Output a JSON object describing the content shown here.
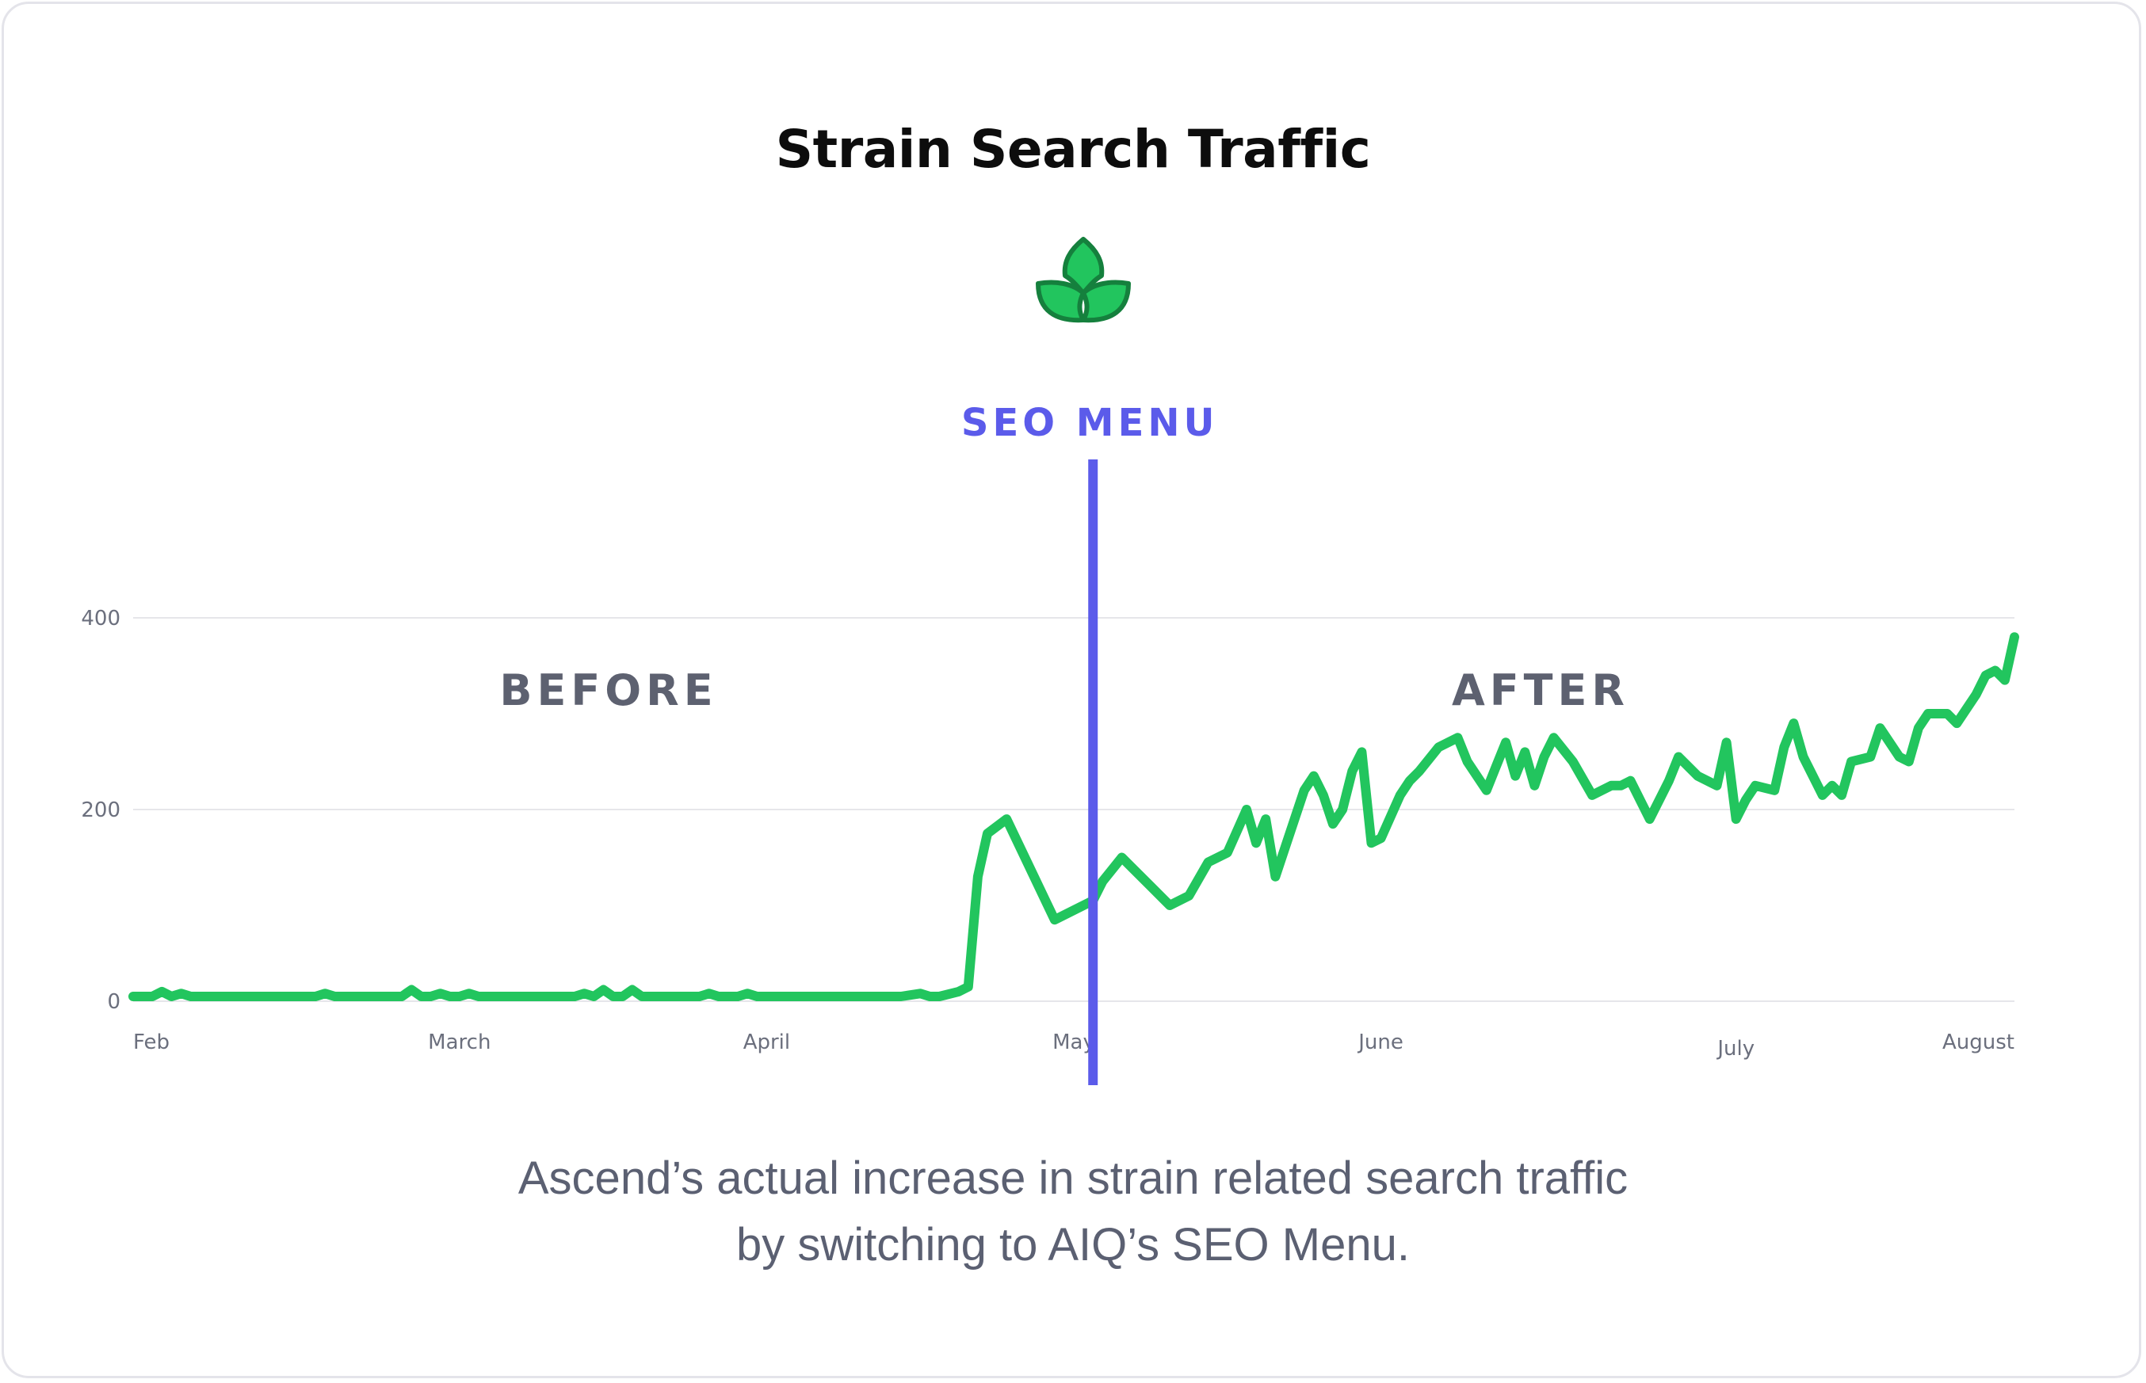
{
  "header": {
    "title": "Strain Search Traffic",
    "logo": "leaf-icon"
  },
  "caption": {
    "line1": "Ascend’s actual increase in strain related search traffic",
    "line2": "by switching to AIQ’s SEO Menu."
  },
  "colors": {
    "line": "#22c55e",
    "marker": "#5b5bea",
    "grid": "#e6e6ea",
    "tick": "#6b6f7d",
    "region": "#5d6170"
  },
  "chart_data": {
    "type": "line",
    "ylim": [
      0,
      400
    ],
    "yticks": [
      0,
      200,
      400
    ],
    "xticks": [
      {
        "label": "Feb",
        "x": 0
      },
      {
        "label": "March",
        "x": 34
      },
      {
        "label": "April",
        "x": 66
      },
      {
        "label": "May",
        "x": 98
      },
      {
        "label": "June",
        "x": 130
      },
      {
        "label": "July",
        "x": 167
      },
      {
        "label": "August",
        "x": 196
      }
    ],
    "marker": {
      "label": "SEO MENU",
      "x": 100
    },
    "regions": [
      {
        "label": "BEFORE"
      },
      {
        "label": "AFTER"
      }
    ],
    "x": [
      0,
      2,
      3,
      4,
      5,
      6,
      19,
      20,
      21,
      28,
      29,
      30,
      31,
      32,
      33,
      34,
      35,
      36,
      37,
      46,
      47,
      48,
      49,
      50,
      51,
      52,
      53,
      54,
      59,
      60,
      61,
      63,
      64,
      65,
      80,
      82,
      83,
      84,
      86,
      87,
      88,
      89,
      91,
      96,
      100,
      101,
      103,
      104,
      106,
      108,
      110,
      112,
      114,
      116,
      117,
      118,
      119,
      120,
      122,
      123,
      124,
      125,
      126,
      127,
      128,
      129,
      130,
      132,
      133,
      134,
      136,
      138,
      139,
      141,
      142,
      143,
      144,
      145,
      146,
      147,
      148,
      150,
      152,
      154,
      155,
      156,
      158,
      160,
      161,
      163,
      165,
      166,
      167,
      168,
      169,
      171,
      172,
      173,
      174,
      176,
      177,
      178,
      179,
      181,
      182,
      184,
      185,
      186,
      187,
      189,
      190,
      192,
      193,
      194,
      195,
      196
    ],
    "y": [
      5,
      5,
      10,
      5,
      8,
      5,
      5,
      8,
      5,
      5,
      12,
      5,
      5,
      8,
      5,
      5,
      8,
      5,
      5,
      5,
      8,
      5,
      12,
      5,
      5,
      12,
      5,
      5,
      5,
      8,
      5,
      5,
      8,
      5,
      5,
      8,
      5,
      5,
      10,
      15,
      130,
      175,
      190,
      85,
      105,
      125,
      150,
      140,
      120,
      100,
      110,
      145,
      155,
      200,
      165,
      190,
      130,
      160,
      220,
      235,
      215,
      185,
      200,
      240,
      260,
      165,
      170,
      215,
      230,
      240,
      265,
      275,
      250,
      220,
      245,
      270,
      235,
      260,
      225,
      255,
      275,
      250,
      215,
      225,
      225,
      230,
      190,
      230,
      255,
      235,
      225,
      270,
      190,
      210,
      225,
      220,
      265,
      290,
      255,
      215,
      225,
      215,
      250,
      255,
      285,
      255,
      250,
      285,
      300,
      300,
      290,
      320,
      340,
      345,
      335,
      380
    ]
  }
}
